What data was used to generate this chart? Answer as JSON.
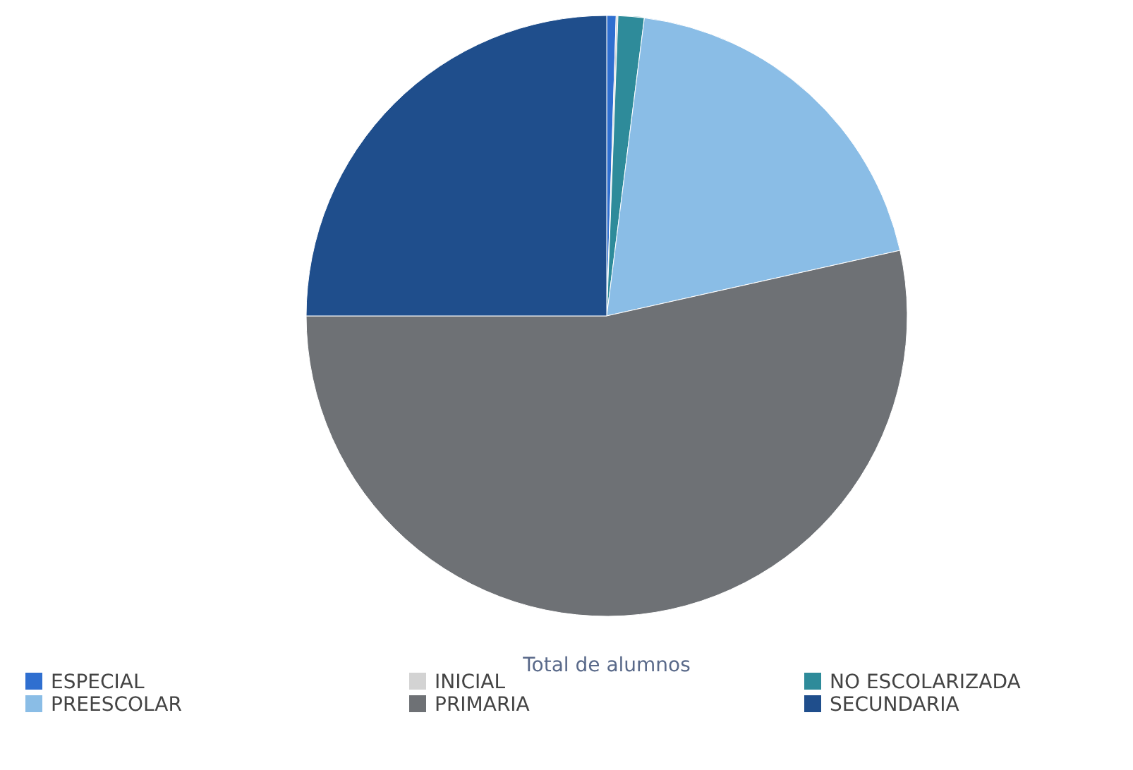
{
  "chart_data": {
    "type": "pie",
    "title": "Total de alumnos",
    "categories": [
      "ESPECIAL",
      "INICIAL",
      "NO ESCOLARIZADA",
      "PREESCOLAR",
      "PRIMARIA",
      "SECUNDARIA"
    ],
    "values": [
      0.5,
      0.1,
      1.4,
      19.5,
      53.5,
      25
    ],
    "colors": [
      "#2f6fd0",
      "#d3d3d3",
      "#2e8b9a",
      "#8abde6",
      "#6e7175",
      "#1f4e8c"
    ],
    "legend": "bottom"
  }
}
